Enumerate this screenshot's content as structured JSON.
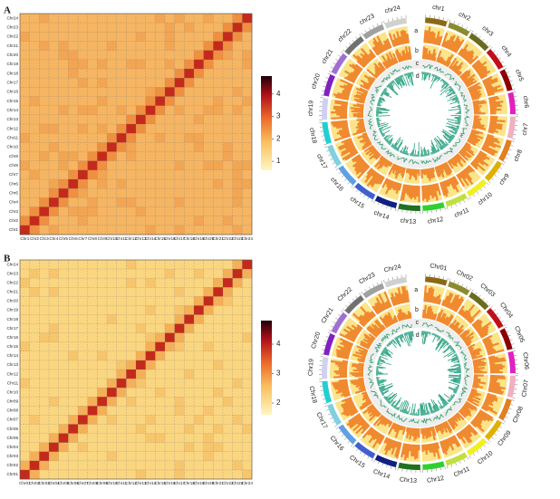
{
  "panels": [
    {
      "label": "A",
      "heatmap": {
        "chromosomes": [
          "Chr1",
          "Chr2",
          "Chr3",
          "Chr4",
          "Chr5",
          "Chr6",
          "Chr7",
          "Chr8",
          "Chr9",
          "Chr10",
          "Chr11",
          "Chr12",
          "Chr13",
          "Chr14",
          "Chr15",
          "Chr16",
          "Chr17",
          "Chr18",
          "Chr19",
          "Chr20",
          "Chr21",
          "Chr22",
          "Chr23",
          "Chr24"
        ]
      },
      "colorbar": {
        "ticks": [
          1,
          2,
          3,
          4
        ]
      },
      "circos": {
        "chromosomes": [
          "chr1",
          "chr2",
          "chr3",
          "chr4",
          "chr5",
          "chr6",
          "chr7",
          "chr8",
          "chr9",
          "chr10",
          "chr11",
          "chr12",
          "chr13",
          "chr14",
          "chr15",
          "chr16",
          "chr17",
          "chr18",
          "chr19",
          "chr20",
          "chr21",
          "chr22",
          "chr23",
          "chr24"
        ],
        "tracks": [
          "a",
          "b",
          "c",
          "d"
        ]
      }
    },
    {
      "label": "B",
      "heatmap": {
        "chromosomes": [
          "Chr01",
          "Chr02",
          "Chr03",
          "Chr04",
          "Chr05",
          "Chr06",
          "Chr07",
          "Chr08",
          "Chr09",
          "Chr10",
          "Chr11",
          "Chr12",
          "Chr13",
          "Chr14",
          "Chr15",
          "Chr16",
          "Chr17",
          "Chr18",
          "Chr19",
          "Chr20",
          "Chr21",
          "Chr22",
          "Chr23",
          "Chr24"
        ]
      },
      "colorbar": {
        "ticks": [
          2,
          3,
          4
        ]
      },
      "circos": {
        "chromosomes": [
          "Chr01",
          "Chr02",
          "Chr03",
          "Chr04",
          "Chr05",
          "Chr06",
          "Chr07",
          "Chr08",
          "Chr09",
          "Chr10",
          "Chr11",
          "Chr12",
          "Chr13",
          "Chr14",
          "Chr15",
          "Chr16",
          "Chr17",
          "Chr18",
          "Chr19",
          "Chr20",
          "Chr21",
          "Chr22",
          "Chr23",
          "Chr24"
        ],
        "tracks": [
          "a",
          "b",
          "c",
          "d"
        ]
      }
    }
  ]
}
